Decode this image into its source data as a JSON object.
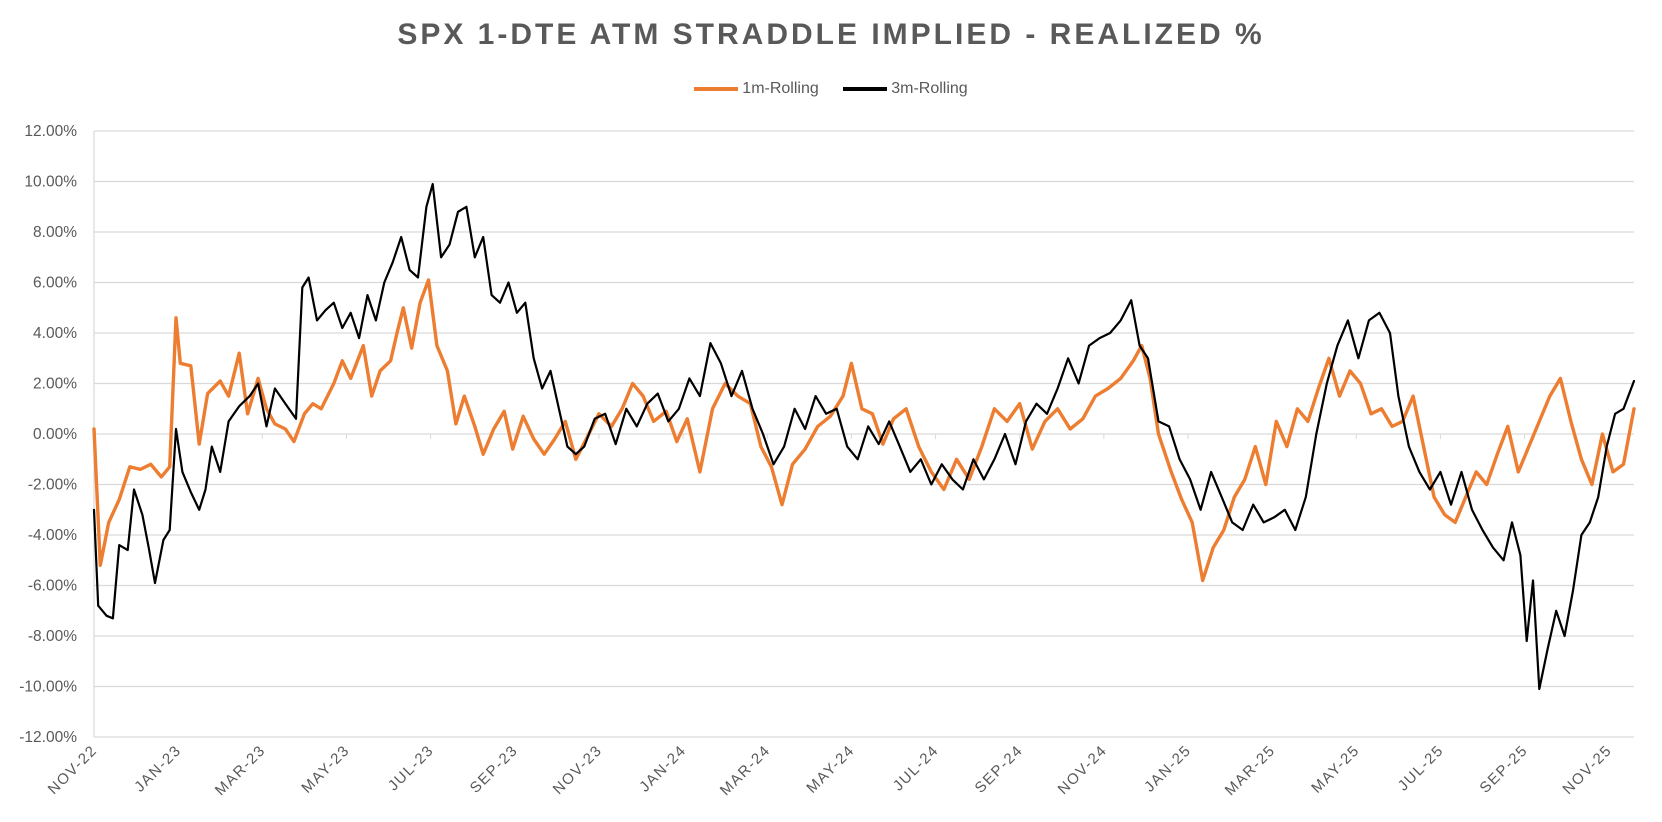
{
  "chart_data": {
    "type": "line",
    "title": "SPX 1-DTE ATM STRADDLE IMPLIED - REALIZED %",
    "xlabel": "",
    "ylabel": "",
    "ylim": [
      -12,
      12
    ],
    "y_ticks": [
      12,
      10,
      8,
      6,
      4,
      2,
      0,
      -2,
      -4,
      -6,
      -8,
      -10,
      -12
    ],
    "y_tick_labels": [
      "12.00%",
      "10.00%",
      "8.00%",
      "6.00%",
      "4.00%",
      "2.00%",
      "0.00%",
      "-2.00%",
      "-4.00%",
      "-6.00%",
      "-8.00%",
      "-10.00%",
      "-12.00%"
    ],
    "x_tick_labels": [
      "NOV-22",
      "JAN-23",
      "MAR-23",
      "MAY-23",
      "JUL-23",
      "SEP-23",
      "NOV-23",
      "JAN-24",
      "MAR-24",
      "MAY-24",
      "JUL-24",
      "SEP-24",
      "NOV-24",
      "JAN-25",
      "MAR-25",
      "MAY-25",
      "JUL-25",
      "SEP-25",
      "NOV-25"
    ],
    "x_range_months": [
      0,
      36.6
    ],
    "grid": true,
    "legend_position": "top-center",
    "series": [
      {
        "name": "1m-Rolling",
        "color": "#ED7D31",
        "points": [
          [
            0.0,
            0.2
          ],
          [
            0.15,
            -5.2
          ],
          [
            0.35,
            -3.5
          ],
          [
            0.6,
            -2.6
          ],
          [
            0.85,
            -1.3
          ],
          [
            1.1,
            -1.4
          ],
          [
            1.35,
            -1.2
          ],
          [
            1.6,
            -1.7
          ],
          [
            1.8,
            -1.3
          ],
          [
            1.95,
            4.6
          ],
          [
            2.05,
            2.8
          ],
          [
            2.3,
            2.7
          ],
          [
            2.5,
            -0.4
          ],
          [
            2.7,
            1.6
          ],
          [
            3.0,
            2.1
          ],
          [
            3.2,
            1.5
          ],
          [
            3.45,
            3.2
          ],
          [
            3.65,
            0.8
          ],
          [
            3.9,
            2.2
          ],
          [
            4.1,
            1.0
          ],
          [
            4.3,
            0.4
          ],
          [
            4.55,
            0.2
          ],
          [
            4.75,
            -0.3
          ],
          [
            5.0,
            0.8
          ],
          [
            5.2,
            1.2
          ],
          [
            5.4,
            1.0
          ],
          [
            5.7,
            2.0
          ],
          [
            5.9,
            2.9
          ],
          [
            6.1,
            2.2
          ],
          [
            6.4,
            3.5
          ],
          [
            6.6,
            1.5
          ],
          [
            6.8,
            2.5
          ],
          [
            7.05,
            2.9
          ],
          [
            7.2,
            4.0
          ],
          [
            7.35,
            5.0
          ],
          [
            7.55,
            3.4
          ],
          [
            7.75,
            5.2
          ],
          [
            7.95,
            6.1
          ],
          [
            8.15,
            3.5
          ],
          [
            8.4,
            2.5
          ],
          [
            8.6,
            0.4
          ],
          [
            8.8,
            1.5
          ],
          [
            9.05,
            0.3
          ],
          [
            9.25,
            -0.8
          ],
          [
            9.5,
            0.2
          ],
          [
            9.75,
            0.9
          ],
          [
            9.95,
            -0.6
          ],
          [
            10.2,
            0.7
          ],
          [
            10.45,
            -0.2
          ],
          [
            10.7,
            -0.8
          ],
          [
            10.95,
            -0.2
          ],
          [
            11.2,
            0.5
          ],
          [
            11.45,
            -1.0
          ],
          [
            11.7,
            -0.2
          ],
          [
            12.0,
            0.8
          ],
          [
            12.3,
            0.3
          ],
          [
            12.55,
            1.0
          ],
          [
            12.8,
            2.0
          ],
          [
            13.05,
            1.5
          ],
          [
            13.3,
            0.5
          ],
          [
            13.6,
            0.9
          ],
          [
            13.85,
            -0.3
          ],
          [
            14.1,
            0.6
          ],
          [
            14.4,
            -1.5
          ],
          [
            14.7,
            1.0
          ],
          [
            15.0,
            2.0
          ],
          [
            15.3,
            1.5
          ],
          [
            15.6,
            1.2
          ],
          [
            15.85,
            -0.5
          ],
          [
            16.1,
            -1.3
          ],
          [
            16.35,
            -2.8
          ],
          [
            16.6,
            -1.2
          ],
          [
            16.9,
            -0.6
          ],
          [
            17.2,
            0.3
          ],
          [
            17.5,
            0.7
          ],
          [
            17.8,
            1.5
          ],
          [
            18.0,
            2.8
          ],
          [
            18.25,
            1.0
          ],
          [
            18.5,
            0.8
          ],
          [
            18.75,
            -0.4
          ],
          [
            19.0,
            0.6
          ],
          [
            19.3,
            1.0
          ],
          [
            19.6,
            -0.5
          ],
          [
            19.9,
            -1.5
          ],
          [
            20.2,
            -2.2
          ],
          [
            20.5,
            -1.0
          ],
          [
            20.8,
            -1.8
          ],
          [
            21.1,
            -0.5
          ],
          [
            21.4,
            1.0
          ],
          [
            21.7,
            0.5
          ],
          [
            22.0,
            1.2
          ],
          [
            22.3,
            -0.6
          ],
          [
            22.6,
            0.5
          ],
          [
            22.9,
            1.0
          ],
          [
            23.2,
            0.2
          ],
          [
            23.5,
            0.6
          ],
          [
            23.8,
            1.5
          ],
          [
            24.1,
            1.8
          ],
          [
            24.4,
            2.2
          ],
          [
            24.7,
            2.9
          ],
          [
            24.9,
            3.5
          ],
          [
            25.1,
            2.2
          ],
          [
            25.3,
            0.0
          ],
          [
            25.6,
            -1.5
          ],
          [
            25.85,
            -2.6
          ],
          [
            26.1,
            -3.5
          ],
          [
            26.35,
            -5.8
          ],
          [
            26.6,
            -4.5
          ],
          [
            26.85,
            -3.8
          ],
          [
            27.1,
            -2.5
          ],
          [
            27.35,
            -1.8
          ],
          [
            27.6,
            -0.5
          ],
          [
            27.85,
            -2.0
          ],
          [
            28.1,
            0.5
          ],
          [
            28.35,
            -0.5
          ],
          [
            28.6,
            1.0
          ],
          [
            28.85,
            0.5
          ],
          [
            29.1,
            1.8
          ],
          [
            29.35,
            3.0
          ],
          [
            29.6,
            1.5
          ],
          [
            29.85,
            2.5
          ],
          [
            30.1,
            2.0
          ],
          [
            30.35,
            0.8
          ],
          [
            30.6,
            1.0
          ],
          [
            30.85,
            0.3
          ],
          [
            31.1,
            0.5
          ],
          [
            31.35,
            1.5
          ],
          [
            31.6,
            -0.5
          ],
          [
            31.85,
            -2.5
          ],
          [
            32.1,
            -3.2
          ],
          [
            32.35,
            -3.5
          ],
          [
            32.6,
            -2.5
          ],
          [
            32.85,
            -1.5
          ],
          [
            33.1,
            -2.0
          ],
          [
            33.35,
            -0.8
          ],
          [
            33.6,
            0.3
          ],
          [
            33.85,
            -1.5
          ],
          [
            34.1,
            -0.5
          ],
          [
            34.35,
            0.5
          ],
          [
            34.6,
            1.5
          ],
          [
            34.85,
            2.2
          ],
          [
            35.1,
            0.5
          ],
          [
            35.35,
            -1.0
          ],
          [
            35.6,
            -2.0
          ],
          [
            35.85,
            0.0
          ],
          [
            36.1,
            -1.5
          ],
          [
            36.35,
            -1.2
          ],
          [
            36.6,
            1.0
          ]
        ]
      },
      {
        "name": "3m-Rolling",
        "color": "#000000",
        "points": [
          [
            0.0,
            -3.0
          ],
          [
            0.1,
            -6.8
          ],
          [
            0.3,
            -7.2
          ],
          [
            0.45,
            -7.3
          ],
          [
            0.6,
            -4.4
          ],
          [
            0.8,
            -4.6
          ],
          [
            0.95,
            -2.2
          ],
          [
            1.15,
            -3.2
          ],
          [
            1.3,
            -4.5
          ],
          [
            1.45,
            -5.9
          ],
          [
            1.65,
            -4.2
          ],
          [
            1.8,
            -3.8
          ],
          [
            1.95,
            0.2
          ],
          [
            2.1,
            -1.5
          ],
          [
            2.3,
            -2.3
          ],
          [
            2.5,
            -3.0
          ],
          [
            2.65,
            -2.2
          ],
          [
            2.8,
            -0.5
          ],
          [
            3.0,
            -1.5
          ],
          [
            3.2,
            0.5
          ],
          [
            3.45,
            1.1
          ],
          [
            3.7,
            1.5
          ],
          [
            3.9,
            2.0
          ],
          [
            4.1,
            0.3
          ],
          [
            4.3,
            1.8
          ],
          [
            4.55,
            1.2
          ],
          [
            4.8,
            0.6
          ],
          [
            4.95,
            5.8
          ],
          [
            5.1,
            6.2
          ],
          [
            5.3,
            4.5
          ],
          [
            5.5,
            4.9
          ],
          [
            5.7,
            5.2
          ],
          [
            5.9,
            4.2
          ],
          [
            6.1,
            4.8
          ],
          [
            6.3,
            3.8
          ],
          [
            6.5,
            5.5
          ],
          [
            6.7,
            4.5
          ],
          [
            6.9,
            6.0
          ],
          [
            7.1,
            6.8
          ],
          [
            7.3,
            7.8
          ],
          [
            7.5,
            6.5
          ],
          [
            7.7,
            6.2
          ],
          [
            7.9,
            9.0
          ],
          [
            8.05,
            9.9
          ],
          [
            8.25,
            7.0
          ],
          [
            8.45,
            7.5
          ],
          [
            8.65,
            8.8
          ],
          [
            8.85,
            9.0
          ],
          [
            9.05,
            7.0
          ],
          [
            9.25,
            7.8
          ],
          [
            9.45,
            5.5
          ],
          [
            9.65,
            5.2
          ],
          [
            9.85,
            6.0
          ],
          [
            10.05,
            4.8
          ],
          [
            10.25,
            5.2
          ],
          [
            10.45,
            3.0
          ],
          [
            10.65,
            1.8
          ],
          [
            10.85,
            2.5
          ],
          [
            11.05,
            1.0
          ],
          [
            11.25,
            -0.5
          ],
          [
            11.45,
            -0.8
          ],
          [
            11.65,
            -0.5
          ],
          [
            11.9,
            0.6
          ],
          [
            12.15,
            0.8
          ],
          [
            12.4,
            -0.4
          ],
          [
            12.65,
            1.0
          ],
          [
            12.9,
            0.3
          ],
          [
            13.15,
            1.2
          ],
          [
            13.4,
            1.6
          ],
          [
            13.65,
            0.5
          ],
          [
            13.9,
            1.0
          ],
          [
            14.15,
            2.2
          ],
          [
            14.4,
            1.5
          ],
          [
            14.65,
            3.6
          ],
          [
            14.9,
            2.8
          ],
          [
            15.15,
            1.5
          ],
          [
            15.4,
            2.5
          ],
          [
            15.65,
            1.0
          ],
          [
            15.9,
            0.0
          ],
          [
            16.15,
            -1.2
          ],
          [
            16.4,
            -0.5
          ],
          [
            16.65,
            1.0
          ],
          [
            16.9,
            0.2
          ],
          [
            17.15,
            1.5
          ],
          [
            17.4,
            0.8
          ],
          [
            17.65,
            1.0
          ],
          [
            17.9,
            -0.5
          ],
          [
            18.15,
            -1.0
          ],
          [
            18.4,
            0.3
          ],
          [
            18.65,
            -0.4
          ],
          [
            18.9,
            0.5
          ],
          [
            19.15,
            -0.5
          ],
          [
            19.4,
            -1.5
          ],
          [
            19.65,
            -1.0
          ],
          [
            19.9,
            -2.0
          ],
          [
            20.15,
            -1.2
          ],
          [
            20.4,
            -1.8
          ],
          [
            20.65,
            -2.2
          ],
          [
            20.9,
            -1.0
          ],
          [
            21.15,
            -1.8
          ],
          [
            21.4,
            -1.0
          ],
          [
            21.65,
            0.0
          ],
          [
            21.9,
            -1.2
          ],
          [
            22.15,
            0.5
          ],
          [
            22.4,
            1.2
          ],
          [
            22.65,
            0.8
          ],
          [
            22.9,
            1.8
          ],
          [
            23.15,
            3.0
          ],
          [
            23.4,
            2.0
          ],
          [
            23.65,
            3.5
          ],
          [
            23.9,
            3.8
          ],
          [
            24.15,
            4.0
          ],
          [
            24.4,
            4.5
          ],
          [
            24.65,
            5.3
          ],
          [
            24.85,
            3.5
          ],
          [
            25.05,
            3.0
          ],
          [
            25.3,
            0.5
          ],
          [
            25.55,
            0.3
          ],
          [
            25.8,
            -1.0
          ],
          [
            26.05,
            -1.8
          ],
          [
            26.3,
            -3.0
          ],
          [
            26.55,
            -1.5
          ],
          [
            26.8,
            -2.5
          ],
          [
            27.05,
            -3.5
          ],
          [
            27.3,
            -3.8
          ],
          [
            27.55,
            -2.8
          ],
          [
            27.8,
            -3.5
          ],
          [
            28.05,
            -3.3
          ],
          [
            28.3,
            -3.0
          ],
          [
            28.55,
            -3.8
          ],
          [
            28.8,
            -2.5
          ],
          [
            29.05,
            0.0
          ],
          [
            29.3,
            2.0
          ],
          [
            29.55,
            3.5
          ],
          [
            29.8,
            4.5
          ],
          [
            30.05,
            3.0
          ],
          [
            30.3,
            4.5
          ],
          [
            30.55,
            4.8
          ],
          [
            30.8,
            4.0
          ],
          [
            31.0,
            1.5
          ],
          [
            31.25,
            -0.5
          ],
          [
            31.5,
            -1.5
          ],
          [
            31.75,
            -2.2
          ],
          [
            32.0,
            -1.5
          ],
          [
            32.25,
            -2.8
          ],
          [
            32.5,
            -1.5
          ],
          [
            32.75,
            -3.0
          ],
          [
            33.0,
            -3.8
          ],
          [
            33.25,
            -4.5
          ],
          [
            33.5,
            -5.0
          ],
          [
            33.7,
            -3.5
          ],
          [
            33.9,
            -4.8
          ],
          [
            34.05,
            -8.2
          ],
          [
            34.2,
            -5.8
          ],
          [
            34.35,
            -10.1
          ],
          [
            34.55,
            -8.5
          ],
          [
            34.75,
            -7.0
          ],
          [
            34.95,
            -8.0
          ],
          [
            35.15,
            -6.2
          ],
          [
            35.35,
            -4.0
          ],
          [
            35.55,
            -3.5
          ],
          [
            35.75,
            -2.5
          ],
          [
            35.95,
            -0.5
          ],
          [
            36.15,
            0.8
          ],
          [
            36.35,
            1.0
          ],
          [
            36.6,
            2.1
          ]
        ]
      }
    ]
  }
}
